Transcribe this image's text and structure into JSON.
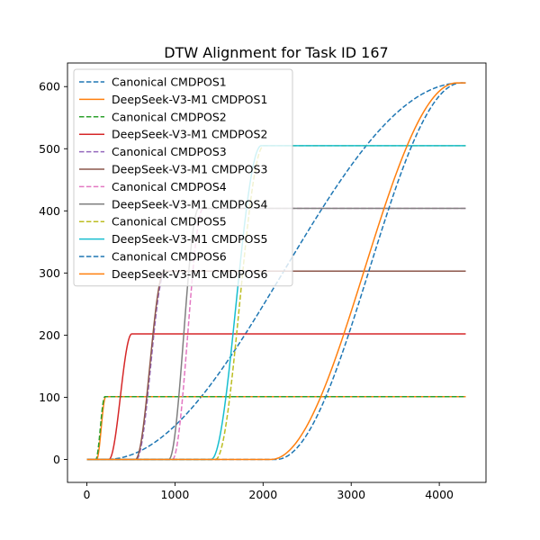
{
  "chart_data": {
    "type": "line",
    "title": "DTW Alignment for Task ID 167",
    "xlabel": "",
    "ylabel": "",
    "xlim": [
      -220,
      4530
    ],
    "ylim": [
      -37,
      638
    ],
    "xticks": [
      0,
      1000,
      2000,
      3000,
      4000
    ],
    "yticks": [
      0,
      100,
      200,
      300,
      400,
      500,
      600
    ],
    "xtick_labels": [
      "0",
      "1000",
      "2000",
      "3000",
      "4000"
    ],
    "ytick_labels": [
      "0",
      "100",
      "200",
      "300",
      "400",
      "500",
      "600"
    ],
    "grid": false,
    "legend_position": "upper-left",
    "x_end": 4300,
    "series": [
      {
        "name": "Canonical CMDPOS1",
        "style": "dashed",
        "color": "#1f77b4",
        "t0": 220,
        "t1": 4250,
        "y0": 0,
        "y1": 606
      },
      {
        "name": "DeepSeek-V3-M1 CMDPOS1",
        "style": "solid",
        "color": "#ff7f0e",
        "t0": 110,
        "t1": 215,
        "y0": 0,
        "y1": 101
      },
      {
        "name": "Canonical CMDPOS2",
        "style": "dashed",
        "color": "#2ca02c",
        "t0": 100,
        "t1": 205,
        "y0": 0,
        "y1": 101
      },
      {
        "name": "DeepSeek-V3-M1 CMDPOS2",
        "style": "solid",
        "color": "#d62728",
        "t0": 250,
        "t1": 510,
        "y0": 0,
        "y1": 202
      },
      {
        "name": "Canonical CMDPOS3",
        "style": "dashed",
        "color": "#9467bd",
        "t0": 560,
        "t1": 890,
        "y0": 0,
        "y1": 303
      },
      {
        "name": "DeepSeek-V3-M1 CMDPOS3",
        "style": "solid",
        "color": "#8c564b",
        "t0": 550,
        "t1": 880,
        "y0": 0,
        "y1": 303
      },
      {
        "name": "Canonical CMDPOS4",
        "style": "dashed",
        "color": "#e377c2",
        "t0": 970,
        "t1": 1320,
        "y0": 0,
        "y1": 404
      },
      {
        "name": "DeepSeek-V3-M1 CMDPOS4",
        "style": "solid",
        "color": "#7f7f7f",
        "t0": 930,
        "t1": 1270,
        "y0": 0,
        "y1": 404
      },
      {
        "name": "Canonical CMDPOS5",
        "style": "dashed",
        "color": "#bcbd22",
        "t0": 1460,
        "t1": 2010,
        "y0": 0,
        "y1": 505
      },
      {
        "name": "DeepSeek-V3-M1 CMDPOS5",
        "style": "solid",
        "color": "#17becf",
        "t0": 1410,
        "t1": 1980,
        "y0": 0,
        "y1": 505
      },
      {
        "name": "Canonical CMDPOS6",
        "style": "dashed",
        "color": "#1f77b4",
        "t0": 2150,
        "t1": 4250,
        "y0": 0,
        "y1": 606
      },
      {
        "name": "DeepSeek-V3-M1 CMDPOS6",
        "style": "solid",
        "color": "#ff7f0e",
        "t0": 2090,
        "t1": 4200,
        "y0": 0,
        "y1": 606
      }
    ]
  }
}
